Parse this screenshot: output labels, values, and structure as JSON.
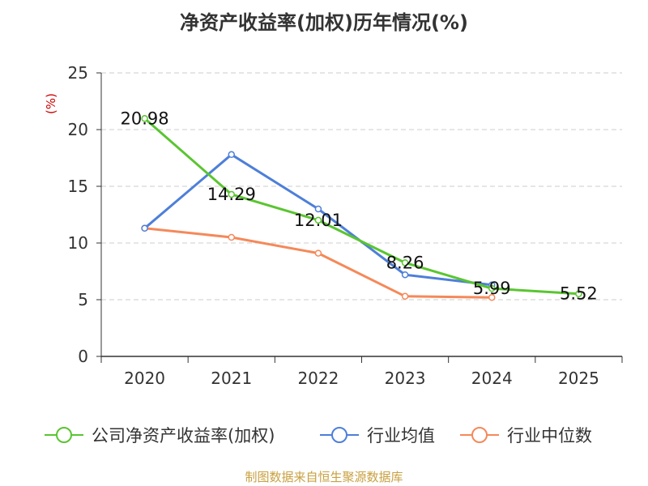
{
  "chart_data": {
    "type": "line",
    "title": "净资产收益率(加权)历年情况(%)",
    "ylabel": "(%)",
    "xlabel": "",
    "categories": [
      "2020",
      "2021",
      "2022",
      "2023",
      "2024",
      "2025"
    ],
    "ylim": [
      0,
      25
    ],
    "yticks": [
      0,
      5,
      10,
      15,
      20,
      25
    ],
    "grid": true,
    "legend_position": "bottom",
    "series": [
      {
        "name": "公司净资产收益率(加权)",
        "color": "#5ac531",
        "values": [
          20.98,
          14.29,
          12.01,
          8.26,
          5.99,
          5.52
        ],
        "labels": [
          "20.98",
          "14.29",
          "12.01",
          "8.26",
          "5.99",
          "5.52"
        ]
      },
      {
        "name": "行业均值",
        "color": "#4e7fd9",
        "values": [
          11.3,
          17.8,
          13.0,
          7.2,
          6.3,
          null
        ]
      },
      {
        "name": "行业中位数",
        "color": "#f5895a",
        "values": [
          11.3,
          10.5,
          9.1,
          5.3,
          5.2,
          null
        ]
      }
    ]
  },
  "footer": "制图数据来自恒生聚源数据库"
}
